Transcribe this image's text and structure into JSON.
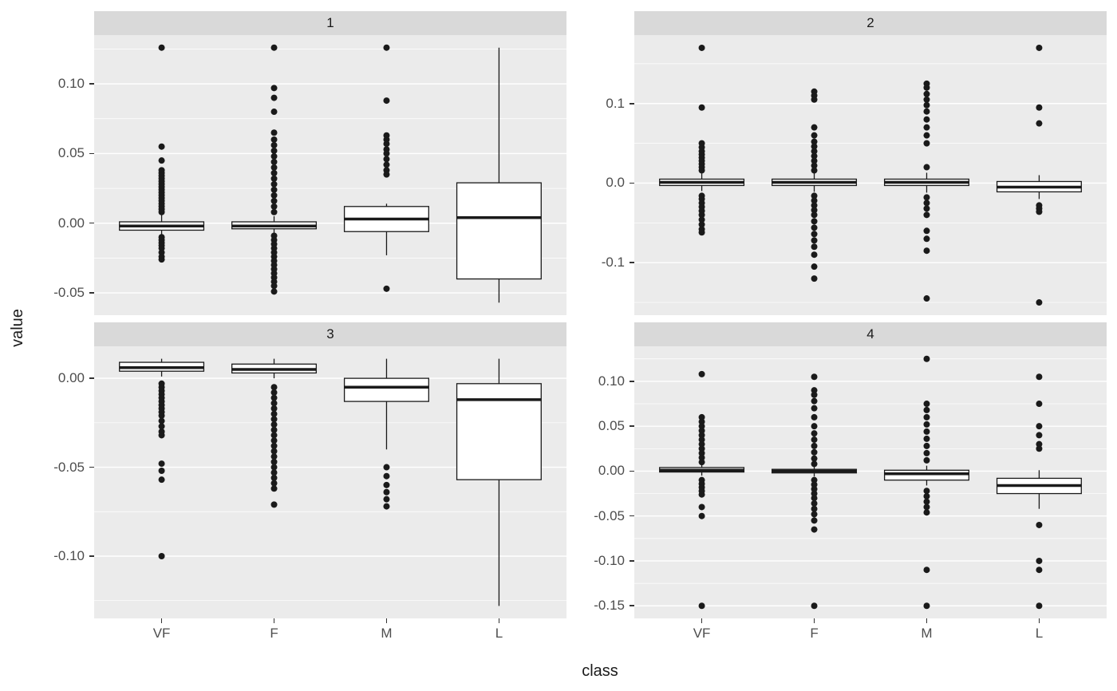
{
  "chart_data": {
    "type": "boxplot",
    "title": "",
    "xlabel": "class",
    "ylabel": "value",
    "categories": [
      "VF",
      "F",
      "M",
      "L"
    ],
    "legend": "none",
    "grid": "on",
    "style": {
      "panel_bg": "#EBEBEB",
      "strip_bg": "#D9D9D9",
      "grid_color": "#FFFFFF",
      "box_fill": "#FFFFFF",
      "line_color": "#1A1A1A",
      "tick_text_color": "#4D4D4D",
      "title_text_color": "#1A1A1A"
    },
    "facets": [
      {
        "label": "1",
        "ylim": [
          -0.066,
          0.135
        ],
        "yticks": [
          {
            "v": 0.1,
            "label": "0.10"
          },
          {
            "v": 0.05,
            "label": "0.05"
          },
          {
            "v": 0.0,
            "label": "0.00"
          },
          {
            "v": -0.05,
            "label": "-0.05"
          }
        ],
        "yminor": [
          0.125,
          0.075,
          0.025,
          -0.025
        ],
        "boxes": [
          {
            "category": "VF",
            "lower": -0.008,
            "q1": -0.005,
            "median": -0.002,
            "q3": 0.001,
            "upper": 0.006,
            "outliers": [
              0.126,
              0.055,
              0.045,
              0.038,
              0.036,
              0.034,
              0.032,
              0.03,
              0.028,
              0.026,
              0.024,
              0.022,
              0.02,
              0.018,
              0.016,
              0.014,
              0.012,
              0.01,
              0.008,
              -0.01,
              -0.012,
              -0.014,
              -0.016,
              -0.018,
              -0.021,
              -0.024,
              -0.026
            ]
          },
          {
            "category": "F",
            "lower": -0.007,
            "q1": -0.004,
            "median": -0.002,
            "q3": 0.001,
            "upper": 0.005,
            "outliers": [
              0.126,
              0.097,
              0.09,
              0.08,
              0.065,
              0.06,
              0.056,
              0.052,
              0.048,
              0.044,
              0.04,
              0.036,
              0.032,
              0.028,
              0.024,
              0.02,
              0.016,
              0.012,
              0.008,
              -0.009,
              -0.012,
              -0.015,
              -0.018,
              -0.021,
              -0.024,
              -0.027,
              -0.03,
              -0.033,
              -0.036,
              -0.039,
              -0.042,
              -0.045,
              -0.049
            ]
          },
          {
            "category": "M",
            "lower": -0.023,
            "q1": -0.006,
            "median": 0.003,
            "q3": 0.012,
            "upper": 0.014,
            "outliers": [
              0.126,
              0.088,
              0.063,
              0.06,
              0.057,
              0.053,
              0.05,
              0.046,
              0.042,
              0.038,
              0.035,
              -0.047
            ]
          },
          {
            "category": "L",
            "lower": -0.057,
            "q1": -0.04,
            "median": 0.004,
            "q3": 0.029,
            "upper": 0.126,
            "outliers": []
          }
        ]
      },
      {
        "label": "2",
        "ylim": [
          -0.166,
          0.186
        ],
        "yticks": [
          {
            "v": 0.1,
            "label": "0.1"
          },
          {
            "v": 0.0,
            "label": "0.0"
          },
          {
            "v": -0.1,
            "label": "-0.1"
          }
        ],
        "yminor": [
          0.15,
          0.05,
          -0.05,
          -0.15
        ],
        "boxes": [
          {
            "category": "VF",
            "lower": -0.01,
            "q1": -0.003,
            "median": 0.001,
            "q3": 0.005,
            "upper": 0.012,
            "outliers": [
              0.17,
              0.095,
              0.05,
              0.045,
              0.04,
              0.036,
              0.032,
              0.028,
              0.024,
              0.02,
              0.016,
              -0.016,
              -0.02,
              -0.025,
              -0.03,
              -0.035,
              -0.04,
              -0.046,
              -0.052,
              -0.058,
              -0.062
            ]
          },
          {
            "category": "F",
            "lower": -0.011,
            "q1": -0.003,
            "median": 0.001,
            "q3": 0.005,
            "upper": 0.013,
            "outliers": [
              0.115,
              0.11,
              0.105,
              0.07,
              0.06,
              0.052,
              0.046,
              0.04,
              0.034,
              0.028,
              0.022,
              0.016,
              -0.016,
              -0.022,
              -0.028,
              -0.034,
              -0.04,
              -0.048,
              -0.056,
              -0.064,
              -0.072,
              -0.08,
              -0.09,
              -0.105,
              -0.12
            ]
          },
          {
            "category": "M",
            "lower": -0.012,
            "q1": -0.003,
            "median": 0.001,
            "q3": 0.005,
            "upper": 0.013,
            "outliers": [
              0.125,
              0.12,
              0.112,
              0.105,
              0.098,
              0.09,
              0.08,
              0.07,
              0.06,
              0.05,
              0.02,
              -0.018,
              -0.025,
              -0.032,
              -0.04,
              -0.06,
              -0.07,
              -0.085,
              -0.145
            ]
          },
          {
            "category": "L",
            "lower": -0.02,
            "q1": -0.011,
            "median": -0.005,
            "q3": 0.002,
            "upper": 0.01,
            "outliers": [
              0.17,
              0.095,
              0.075,
              -0.028,
              -0.032,
              -0.036,
              -0.15
            ]
          }
        ]
      },
      {
        "label": "3",
        "ylim": [
          -0.135,
          0.018
        ],
        "yticks": [
          {
            "v": 0.0,
            "label": "0.00"
          },
          {
            "v": -0.05,
            "label": "-0.05"
          },
          {
            "v": -0.1,
            "label": "-0.10"
          }
        ],
        "yminor": [
          -0.025,
          -0.075,
          -0.125
        ],
        "boxes": [
          {
            "category": "VF",
            "lower": 0.001,
            "q1": 0.004,
            "median": 0.006,
            "q3": 0.009,
            "upper": 0.011,
            "outliers": [
              -0.003,
              -0.005,
              -0.007,
              -0.009,
              -0.011,
              -0.013,
              -0.015,
              -0.017,
              -0.019,
              -0.021,
              -0.024,
              -0.027,
              -0.03,
              -0.032,
              -0.048,
              -0.052,
              -0.057,
              -0.1
            ]
          },
          {
            "category": "F",
            "lower": 0.0,
            "q1": 0.003,
            "median": 0.005,
            "q3": 0.008,
            "upper": 0.011,
            "outliers": [
              -0.005,
              -0.008,
              -0.011,
              -0.014,
              -0.017,
              -0.02,
              -0.023,
              -0.026,
              -0.029,
              -0.032,
              -0.035,
              -0.038,
              -0.041,
              -0.044,
              -0.047,
              -0.05,
              -0.053,
              -0.056,
              -0.059,
              -0.062,
              -0.071
            ]
          },
          {
            "category": "M",
            "lower": -0.04,
            "q1": -0.013,
            "median": -0.005,
            "q3": 0.0,
            "upper": 0.011,
            "outliers": [
              -0.05,
              -0.055,
              -0.06,
              -0.064,
              -0.068,
              -0.072
            ]
          },
          {
            "category": "L",
            "lower": -0.128,
            "q1": -0.057,
            "median": -0.012,
            "q3": -0.003,
            "upper": 0.011,
            "outliers": []
          }
        ]
      },
      {
        "label": "4",
        "ylim": [
          -0.164,
          0.139
        ],
        "yticks": [
          {
            "v": 0.1,
            "label": "0.10"
          },
          {
            "v": 0.05,
            "label": "0.05"
          },
          {
            "v": 0.0,
            "label": "0.00"
          },
          {
            "v": -0.05,
            "label": "-0.05"
          },
          {
            "v": -0.1,
            "label": "-0.10"
          },
          {
            "v": -0.15,
            "label": "-0.15"
          }
        ],
        "yminor": [
          0.125,
          0.075,
          0.025,
          -0.025,
          -0.075,
          -0.125
        ],
        "boxes": [
          {
            "category": "VF",
            "lower": -0.005,
            "q1": -0.001,
            "median": 0.001,
            "q3": 0.004,
            "upper": 0.009,
            "outliers": [
              0.108,
              0.06,
              0.055,
              0.05,
              0.045,
              0.04,
              0.035,
              0.03,
              0.025,
              0.02,
              0.015,
              0.01,
              -0.01,
              -0.014,
              -0.018,
              -0.022,
              -0.026,
              -0.04,
              -0.05,
              -0.15
            ]
          },
          {
            "category": "F",
            "lower": -0.006,
            "q1": -0.002,
            "median": 0.0,
            "q3": 0.002,
            "upper": 0.007,
            "outliers": [
              0.105,
              0.09,
              0.085,
              0.078,
              0.07,
              0.06,
              0.05,
              0.042,
              0.035,
              0.028,
              0.021,
              0.014,
              0.008,
              -0.01,
              -0.015,
              -0.02,
              -0.025,
              -0.03,
              -0.036,
              -0.042,
              -0.048,
              -0.055,
              -0.065,
              -0.15
            ]
          },
          {
            "category": "M",
            "lower": -0.016,
            "q1": -0.01,
            "median": -0.003,
            "q3": 0.001,
            "upper": 0.006,
            "outliers": [
              0.125,
              0.075,
              0.068,
              0.06,
              0.052,
              0.044,
              0.036,
              0.028,
              0.02,
              0.012,
              -0.022,
              -0.028,
              -0.034,
              -0.04,
              -0.046,
              -0.11,
              -0.15
            ]
          },
          {
            "category": "L",
            "lower": -0.042,
            "q1": -0.025,
            "median": -0.016,
            "q3": -0.008,
            "upper": 0.001,
            "outliers": [
              0.105,
              0.075,
              0.05,
              0.04,
              0.03,
              0.025,
              -0.06,
              -0.1,
              -0.11,
              -0.15
            ]
          }
        ]
      }
    ]
  }
}
